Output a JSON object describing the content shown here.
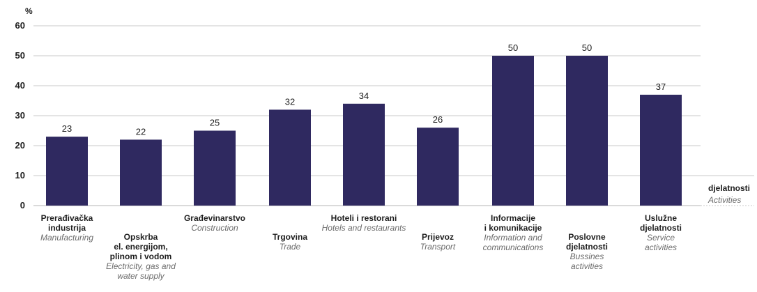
{
  "chart_data": {
    "type": "bar",
    "ylabel": "%",
    "ylim": [
      0,
      60
    ],
    "yticks": [
      0,
      10,
      20,
      30,
      40,
      50,
      60
    ],
    "grid": true,
    "bar_color": "#2f2960",
    "x_axis_title": {
      "hr": "djelatnosti",
      "en": "Activities"
    },
    "categories": [
      {
        "hr": [
          "Prerađivačka",
          "industrija"
        ],
        "en": [
          "Manufacturing"
        ],
        "label_row": 0
      },
      {
        "hr": [
          "Opskrba",
          "el. energijom,",
          "plinom i vodom"
        ],
        "en": [
          "Electricity, gas and",
          "water supply"
        ],
        "label_row": 1
      },
      {
        "hr": [
          "Građevinarstvo"
        ],
        "en": [
          "Construction"
        ],
        "label_row": 0
      },
      {
        "hr": [
          "Trgovina"
        ],
        "en": [
          "Trade"
        ],
        "label_row": 1
      },
      {
        "hr": [
          "Hoteli i restorani"
        ],
        "en": [
          "Hotels and restaurants"
        ],
        "label_row": 0
      },
      {
        "hr": [
          "Prijevoz"
        ],
        "en": [
          "Transport"
        ],
        "label_row": 1
      },
      {
        "hr": [
          "Informacije",
          "i komunikacije"
        ],
        "en": [
          "Information and",
          "communications"
        ],
        "label_row": 0
      },
      {
        "hr": [
          "Poslovne",
          "djelatnosti"
        ],
        "en": [
          "Bussines",
          "activities"
        ],
        "label_row": 1
      },
      {
        "hr": [
          "Uslužne",
          "djelatnosti"
        ],
        "en": [
          "Service",
          "activities"
        ],
        "label_row": 0
      }
    ],
    "values": [
      23,
      22,
      25,
      32,
      34,
      26,
      50,
      50,
      37
    ]
  }
}
